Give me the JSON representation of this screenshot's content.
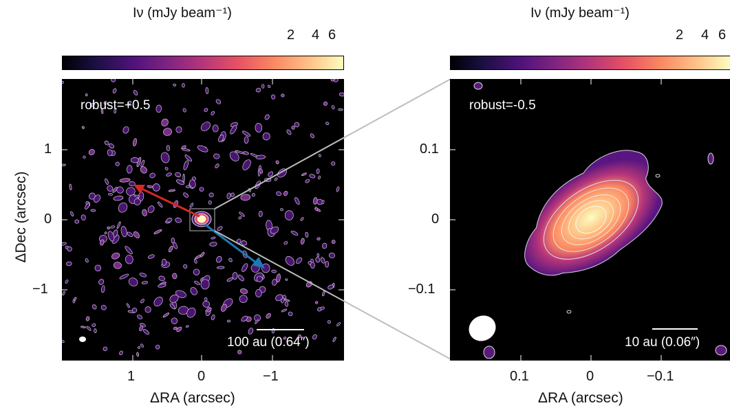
{
  "colors": {
    "background": "#000000",
    "contour": "#d9d9e6",
    "arrow_red": "#d62728",
    "arrow_blue": "#1f77b4"
  },
  "left_panel": {
    "colorbar": {
      "title": "Iν (mJy beam⁻¹)",
      "ticks": [
        "2",
        "4",
        "6"
      ]
    },
    "label": "robust=+0.5",
    "scalebar": "100 au (0.64″)",
    "x_label": "ΔRA (arcsec)",
    "y_label": "ΔDec (arcsec)",
    "x_ticks": [
      "1",
      "0",
      "−1"
    ],
    "y_ticks": [
      "1",
      "0",
      "−1"
    ]
  },
  "right_panel": {
    "colorbar": {
      "title": "Iν (mJy beam⁻¹)",
      "ticks": [
        "2",
        "4",
        "6"
      ]
    },
    "label": "robust=-0.5",
    "scalebar": "10 au (0.06″)",
    "x_label": "ΔRA (arcsec)",
    "x_ticks": [
      "0.1",
      "0",
      "−0.1"
    ],
    "y_ticks": [
      "0.1",
      "0",
      "−0.1"
    ]
  }
}
